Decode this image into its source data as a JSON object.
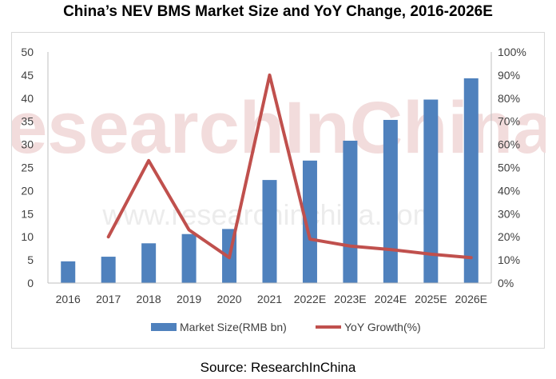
{
  "chart_data": {
    "type": "bar",
    "title": "China’s NEV BMS Market Size and YoY Change, 2016-2026E",
    "categories": [
      "2016",
      "2017",
      "2018",
      "2019",
      "2020",
      "2021",
      "2022E",
      "2023E",
      "2024E",
      "2025E",
      "2026E"
    ],
    "series": [
      {
        "name": "Market Size(RMB bn)",
        "type": "bar",
        "axis": "left",
        "color": "#4f81bd",
        "values": [
          4.7,
          5.7,
          8.6,
          10.6,
          11.7,
          22.3,
          26.5,
          30.8,
          35.3,
          39.7,
          44.3
        ]
      },
      {
        "name": "YoY Growth(%)",
        "type": "line",
        "axis": "right",
        "color": "#c0504d",
        "values": [
          null,
          20,
          53,
          23,
          11,
          90,
          19,
          16,
          14.5,
          12.5,
          11
        ]
      }
    ],
    "y_left": {
      "min": 0,
      "max": 50,
      "step": 5
    },
    "y_right": {
      "min": 0,
      "max": 100,
      "step": 10,
      "unit": "%"
    },
    "grid": false,
    "legend_position": "bottom",
    "watermark": [
      "ResearchInChina",
      "www.researchinchina.com"
    ]
  },
  "source": "Source: ResearchInChina"
}
